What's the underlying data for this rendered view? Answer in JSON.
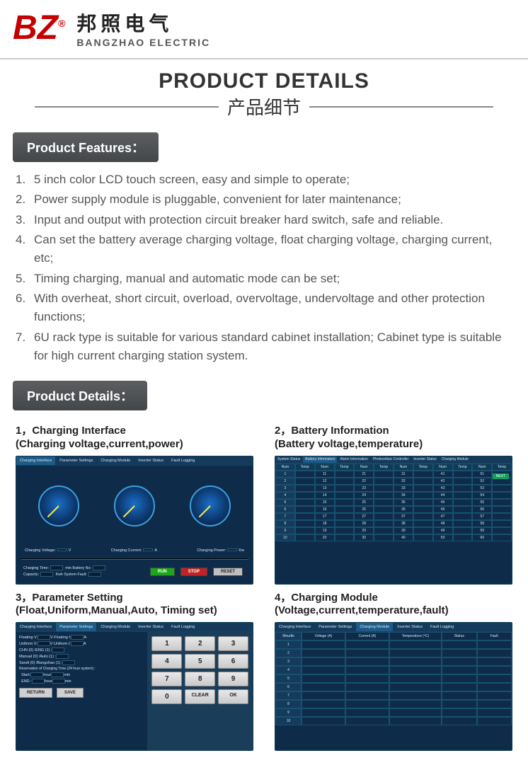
{
  "brand": {
    "logo_letters": "BZ",
    "registered": "®",
    "name_cn": "邦照电气",
    "name_en": "BANGZHAO ELECTRIC"
  },
  "title": {
    "en": "PRODUCT DETAILS",
    "cn": "产品细节"
  },
  "sections": {
    "features_label": "Product Features：",
    "details_label": "Product Details："
  },
  "features": [
    "5 inch color LCD touch screen, easy and simple to operate;",
    "Power supply module is pluggable, convenient for later maintenance;",
    "Input and output with protection circuit breaker hard switch, safe and reliable.",
    "Can set the battery average charging voltage, float charging voltage, charging current, etc;",
    "Timing charging, manual and automatic mode can be set;",
    "With overheat, short circuit, overload, overvoltage, undervoltage and other protection functions;",
    "6U rack type is suitable for various standard cabinet installation; Cabinet type is suitable for high current charging station system."
  ],
  "details": [
    {
      "num": "1，",
      "title": "Charging Interface",
      "sub": "(Charging voltage,current,power)"
    },
    {
      "num": "2，",
      "title": "Battery Information",
      "sub": "(Battery voltage,temperature)"
    },
    {
      "num": "3，",
      "title": "Parameter Setting",
      "sub": "(Float,Uniform,Manual,Auto, Timing set)"
    },
    {
      "num": "4，",
      "title": "Charging Module",
      "sub": "(Voltage,current,temperature,fault)"
    }
  ],
  "screens": {
    "tabs": [
      "Charging Interface",
      "Parameter Settings",
      "Charging Module",
      "Inverter Status",
      "Fault Logging"
    ],
    "tabs2": [
      "System Status",
      "Battery Information",
      "Alarm Information",
      "Photovoltaic Controller",
      "Inverter Status",
      "Charging Module"
    ],
    "next_label": "NEXT",
    "gauge_labels": {
      "v": "Charging Voltage:",
      "vu": "V",
      "c": "Charging Current:",
      "cu": "A",
      "p": "Charging Power:",
      "pu": "Kw"
    },
    "btns": {
      "run": "RUN",
      "stop": "STOP",
      "reset": "RESET"
    },
    "param_text": {
      "time": "Charging Time:",
      "batno": "Battery No:",
      "cap": "Capacity:",
      "fault": "System Fault:"
    },
    "bat_head": [
      "Num",
      "Temp",
      "Num",
      "Temp",
      "Num",
      "Temp",
      "Num",
      "Temp",
      "Num",
      "Temp",
      "Num",
      "Temp"
    ],
    "bat_rows": [
      [
        "1",
        "",
        "11",
        "",
        "21",
        "",
        "31",
        "",
        "41",
        "",
        "51",
        ""
      ],
      [
        "2",
        "",
        "12",
        "",
        "22",
        "",
        "32",
        "",
        "42",
        "",
        "52",
        ""
      ],
      [
        "3",
        "",
        "13",
        "",
        "23",
        "",
        "33",
        "",
        "43",
        "",
        "53",
        ""
      ],
      [
        "4",
        "",
        "14",
        "",
        "24",
        "",
        "34",
        "",
        "44",
        "",
        "54",
        ""
      ],
      [
        "5",
        "",
        "15",
        "",
        "25",
        "",
        "35",
        "",
        "45",
        "",
        "55",
        ""
      ],
      [
        "6",
        "",
        "16",
        "",
        "26",
        "",
        "36",
        "",
        "46",
        "",
        "56",
        ""
      ],
      [
        "7",
        "",
        "17",
        "",
        "27",
        "",
        "37",
        "",
        "47",
        "",
        "57",
        ""
      ],
      [
        "8",
        "",
        "18",
        "",
        "28",
        "",
        "38",
        "",
        "48",
        "",
        "58",
        ""
      ],
      [
        "9",
        "",
        "19",
        "",
        "29",
        "",
        "39",
        "",
        "49",
        "",
        "59",
        ""
      ],
      [
        "10",
        "",
        "20",
        "",
        "30",
        "",
        "40",
        "",
        "50",
        "",
        "60",
        ""
      ]
    ],
    "ps_lines": [
      "Floating V:",
      "V Floating I:",
      "A",
      "Uniform V:",
      "V Uniform I:",
      "A",
      "CHN (0) /ENG (1) :",
      "Manual (0) /Auto (1) :",
      "Sandi (0) /Bangzhao (1) :",
      "Reservation of Charging Time (24 hour system) :",
      "Start:",
      "hour",
      "min",
      "END :",
      "hour",
      "min"
    ],
    "ps_btns": {
      "return": "RETURN",
      "save": "SAVE"
    },
    "keypad": [
      "1",
      "2",
      "3",
      "4",
      "5",
      "6",
      "7",
      "8",
      "9",
      "0",
      "CLEAR",
      "OK"
    ],
    "mod_head": [
      "Moudle",
      "Voltage (A)",
      "Current (A)",
      "Temperature (℃)",
      "Status",
      "Fault"
    ],
    "mod_rows": [
      "1",
      "2",
      "3",
      "4",
      "5",
      "6",
      "7",
      "8",
      "9",
      "10"
    ]
  },
  "colors": {
    "brand_red": "#c40000",
    "tab_bg": "#4c4f52",
    "screen_bg": "#0f2b4a",
    "screen_border": "#0a3a55"
  }
}
